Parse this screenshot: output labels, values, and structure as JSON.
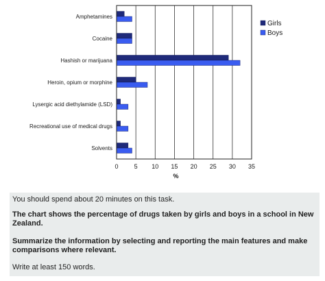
{
  "chart_data": {
    "type": "bar",
    "orientation": "horizontal",
    "categories": [
      "Amphetamines",
      "Cocaine",
      "Hashish or marijuana",
      "Heroin, opium or morphine",
      "Lysergic acid diethylamide (LSD)",
      "Recreational use of medical drugs",
      "Solvents"
    ],
    "series": [
      {
        "name": "Girls",
        "color": "#1f2a7a",
        "values": [
          2,
          4,
          29,
          5,
          1,
          1,
          3
        ]
      },
      {
        "name": "Boys",
        "color": "#3a5cf0",
        "values": [
          4,
          4,
          32,
          8,
          3,
          3,
          4
        ]
      }
    ],
    "xlabel": "%",
    "xlim": [
      0,
      35
    ],
    "xticks": [
      "0",
      "5",
      "10",
      "15",
      "20",
      "25",
      "30",
      "35"
    ],
    "grid": true,
    "legend": "right"
  },
  "task": {
    "line1": "You should spend about 20 minutes on this task.",
    "line2": "The chart shows the percentage of drugs taken by girls and boys in a school in New Zealand.",
    "line3": "Summarize the information by selecting and reporting the main features and make comparisons where relevant.",
    "line4": "Write at least 150 words."
  }
}
